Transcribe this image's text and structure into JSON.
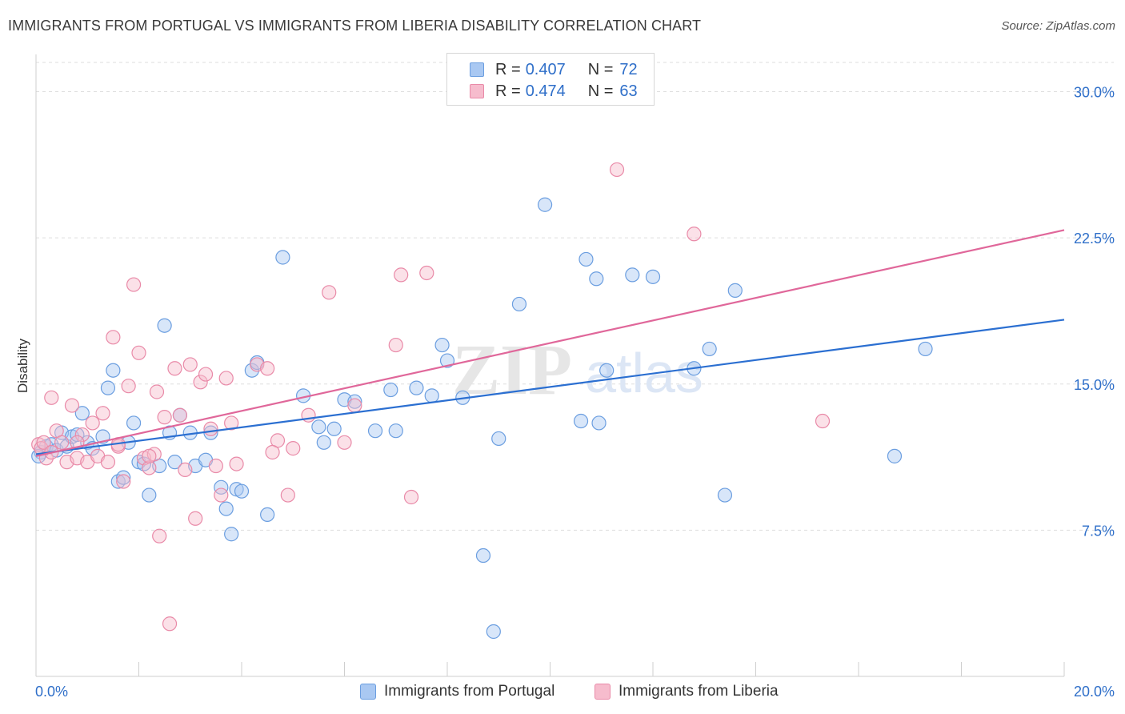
{
  "title": "IMMIGRANTS FROM PORTUGAL VS IMMIGRANTS FROM LIBERIA DISABILITY CORRELATION CHART",
  "source": "Source: ZipAtlas.com",
  "watermark": {
    "zip": "ZIP",
    "atlas": "atlas"
  },
  "colors": {
    "portugal_fill": "#a9c8f2",
    "portugal_stroke": "#6b9ee0",
    "portugal_line": "#2b6fd1",
    "liberia_fill": "#f6bccd",
    "liberia_stroke": "#e98aa8",
    "liberia_line": "#e0679a",
    "axis_text": "#2f6fc9",
    "grid": "#dedede"
  },
  "legend_top": {
    "rows": [
      {
        "r_label": "R = ",
        "r_value": "0.407",
        "n_label": "N = ",
        "n_value": "72"
      },
      {
        "r_label": "R = ",
        "r_value": "0.474",
        "n_label": "N = ",
        "n_value": "63"
      }
    ]
  },
  "legend_bottom": {
    "portugal": "Immigrants from Portugal",
    "liberia": "Immigrants from Liberia"
  },
  "chart_data": {
    "type": "scatter",
    "title": "IMMIGRANTS FROM PORTUGAL VS IMMIGRANTS FROM LIBERIA DISABILITY CORRELATION CHART",
    "xlabel": "",
    "ylabel": "Disability",
    "xlim": [
      0,
      20
    ],
    "ylim": [
      0,
      31.5
    ],
    "x_ticks_labels": [
      "0.0%",
      "20.0%"
    ],
    "y_ticks": [
      7.5,
      15.0,
      22.5,
      30.0
    ],
    "y_ticks_labels": [
      "7.5%",
      "15.0%",
      "22.5%",
      "30.0%"
    ],
    "grid": true,
    "legend_position": "top-center",
    "series": [
      {
        "name": "Immigrants from Portugal",
        "r": 0.407,
        "n": 72,
        "trend": [
          [
            0,
            11.4
          ],
          [
            20,
            18.3
          ]
        ],
        "points": [
          [
            0.1,
            11.5
          ],
          [
            0.2,
            11.8
          ],
          [
            0.3,
            11.9
          ],
          [
            0.4,
            11.6
          ],
          [
            0.5,
            12.5
          ],
          [
            0.6,
            11.8
          ],
          [
            0.7,
            12.3
          ],
          [
            0.8,
            12.4
          ],
          [
            0.9,
            13.5
          ],
          [
            1.0,
            12.0
          ],
          [
            1.1,
            11.7
          ],
          [
            1.3,
            12.3
          ],
          [
            1.4,
            14.8
          ],
          [
            1.5,
            15.7
          ],
          [
            1.6,
            10.0
          ],
          [
            1.7,
            10.2
          ],
          [
            1.8,
            12.0
          ],
          [
            1.9,
            13.0
          ],
          [
            2.0,
            11.0
          ],
          [
            2.1,
            10.9
          ],
          [
            2.2,
            9.3
          ],
          [
            2.4,
            10.8
          ],
          [
            2.5,
            18.0
          ],
          [
            2.6,
            12.5
          ],
          [
            2.7,
            11.0
          ],
          [
            2.8,
            13.4
          ],
          [
            3.1,
            10.8
          ],
          [
            3.3,
            11.1
          ],
          [
            3.4,
            12.5
          ],
          [
            3.6,
            9.7
          ],
          [
            3.7,
            8.6
          ],
          [
            3.8,
            7.3
          ],
          [
            3.9,
            9.6
          ],
          [
            4.0,
            9.5
          ],
          [
            4.2,
            15.7
          ],
          [
            4.3,
            16.1
          ],
          [
            4.5,
            8.3
          ],
          [
            4.8,
            21.5
          ],
          [
            5.2,
            14.4
          ],
          [
            5.5,
            12.8
          ],
          [
            5.6,
            12.0
          ],
          [
            5.8,
            12.7
          ],
          [
            6.0,
            14.2
          ],
          [
            6.2,
            14.1
          ],
          [
            6.6,
            12.6
          ],
          [
            6.9,
            14.7
          ],
          [
            7.0,
            12.6
          ],
          [
            7.4,
            14.8
          ],
          [
            7.7,
            14.4
          ],
          [
            7.9,
            17.0
          ],
          [
            8.0,
            16.2
          ],
          [
            8.3,
            14.3
          ],
          [
            8.7,
            6.2
          ],
          [
            8.9,
            2.3
          ],
          [
            9.0,
            12.2
          ],
          [
            9.4,
            19.1
          ],
          [
            9.9,
            24.2
          ],
          [
            10.6,
            13.1
          ],
          [
            10.7,
            21.4
          ],
          [
            10.9,
            20.4
          ],
          [
            10.95,
            13.0
          ],
          [
            11.1,
            15.7
          ],
          [
            11.6,
            20.6
          ],
          [
            12.0,
            20.5
          ],
          [
            12.8,
            15.8
          ],
          [
            13.1,
            16.8
          ],
          [
            13.4,
            9.3
          ],
          [
            13.6,
            19.8
          ],
          [
            16.7,
            11.3
          ],
          [
            17.3,
            16.8
          ],
          [
            0.05,
            11.3
          ],
          [
            3.0,
            12.5
          ]
        ]
      },
      {
        "name": "Immigrants from Liberia",
        "r": 0.474,
        "n": 63,
        "trend": [
          [
            0,
            11.3
          ],
          [
            20,
            22.9
          ]
        ],
        "points": [
          [
            0.05,
            11.9
          ],
          [
            0.1,
            11.7
          ],
          [
            0.2,
            11.2
          ],
          [
            0.3,
            14.3
          ],
          [
            0.4,
            12.6
          ],
          [
            0.5,
            12.0
          ],
          [
            0.6,
            11.0
          ],
          [
            0.7,
            13.9
          ],
          [
            0.8,
            11.2
          ],
          [
            0.9,
            12.4
          ],
          [
            1.0,
            11.0
          ],
          [
            1.1,
            13.0
          ],
          [
            1.2,
            11.3
          ],
          [
            1.3,
            13.5
          ],
          [
            1.4,
            11.0
          ],
          [
            1.5,
            17.4
          ],
          [
            1.6,
            11.8
          ],
          [
            1.7,
            10.0
          ],
          [
            1.8,
            14.9
          ],
          [
            1.9,
            20.1
          ],
          [
            2.0,
            16.6
          ],
          [
            2.1,
            11.2
          ],
          [
            2.2,
            10.7
          ],
          [
            2.3,
            11.4
          ],
          [
            2.35,
            14.6
          ],
          [
            2.4,
            7.2
          ],
          [
            2.5,
            13.3
          ],
          [
            2.6,
            2.7
          ],
          [
            2.7,
            15.8
          ],
          [
            2.8,
            13.4
          ],
          [
            2.9,
            10.6
          ],
          [
            3.0,
            16.0
          ],
          [
            3.1,
            8.1
          ],
          [
            3.2,
            15.1
          ],
          [
            3.3,
            15.5
          ],
          [
            3.4,
            12.7
          ],
          [
            3.5,
            10.8
          ],
          [
            3.6,
            9.3
          ],
          [
            3.7,
            15.3
          ],
          [
            3.8,
            13.0
          ],
          [
            4.3,
            16.0
          ],
          [
            4.5,
            15.8
          ],
          [
            4.7,
            12.1
          ],
          [
            4.9,
            9.3
          ],
          [
            5.0,
            11.7
          ],
          [
            5.3,
            13.4
          ],
          [
            5.7,
            19.7
          ],
          [
            6.2,
            13.9
          ],
          [
            7.0,
            17.0
          ],
          [
            7.1,
            20.6
          ],
          [
            7.3,
            9.2
          ],
          [
            7.6,
            20.7
          ],
          [
            11.3,
            26.0
          ],
          [
            12.8,
            22.7
          ],
          [
            15.3,
            13.1
          ],
          [
            0.15,
            12.0
          ],
          [
            0.8,
            12.0
          ],
          [
            1.6,
            11.9
          ],
          [
            2.2,
            11.3
          ],
          [
            3.9,
            10.9
          ],
          [
            4.6,
            11.5
          ],
          [
            6.0,
            12.0
          ],
          [
            0.3,
            11.5
          ]
        ]
      }
    ]
  }
}
